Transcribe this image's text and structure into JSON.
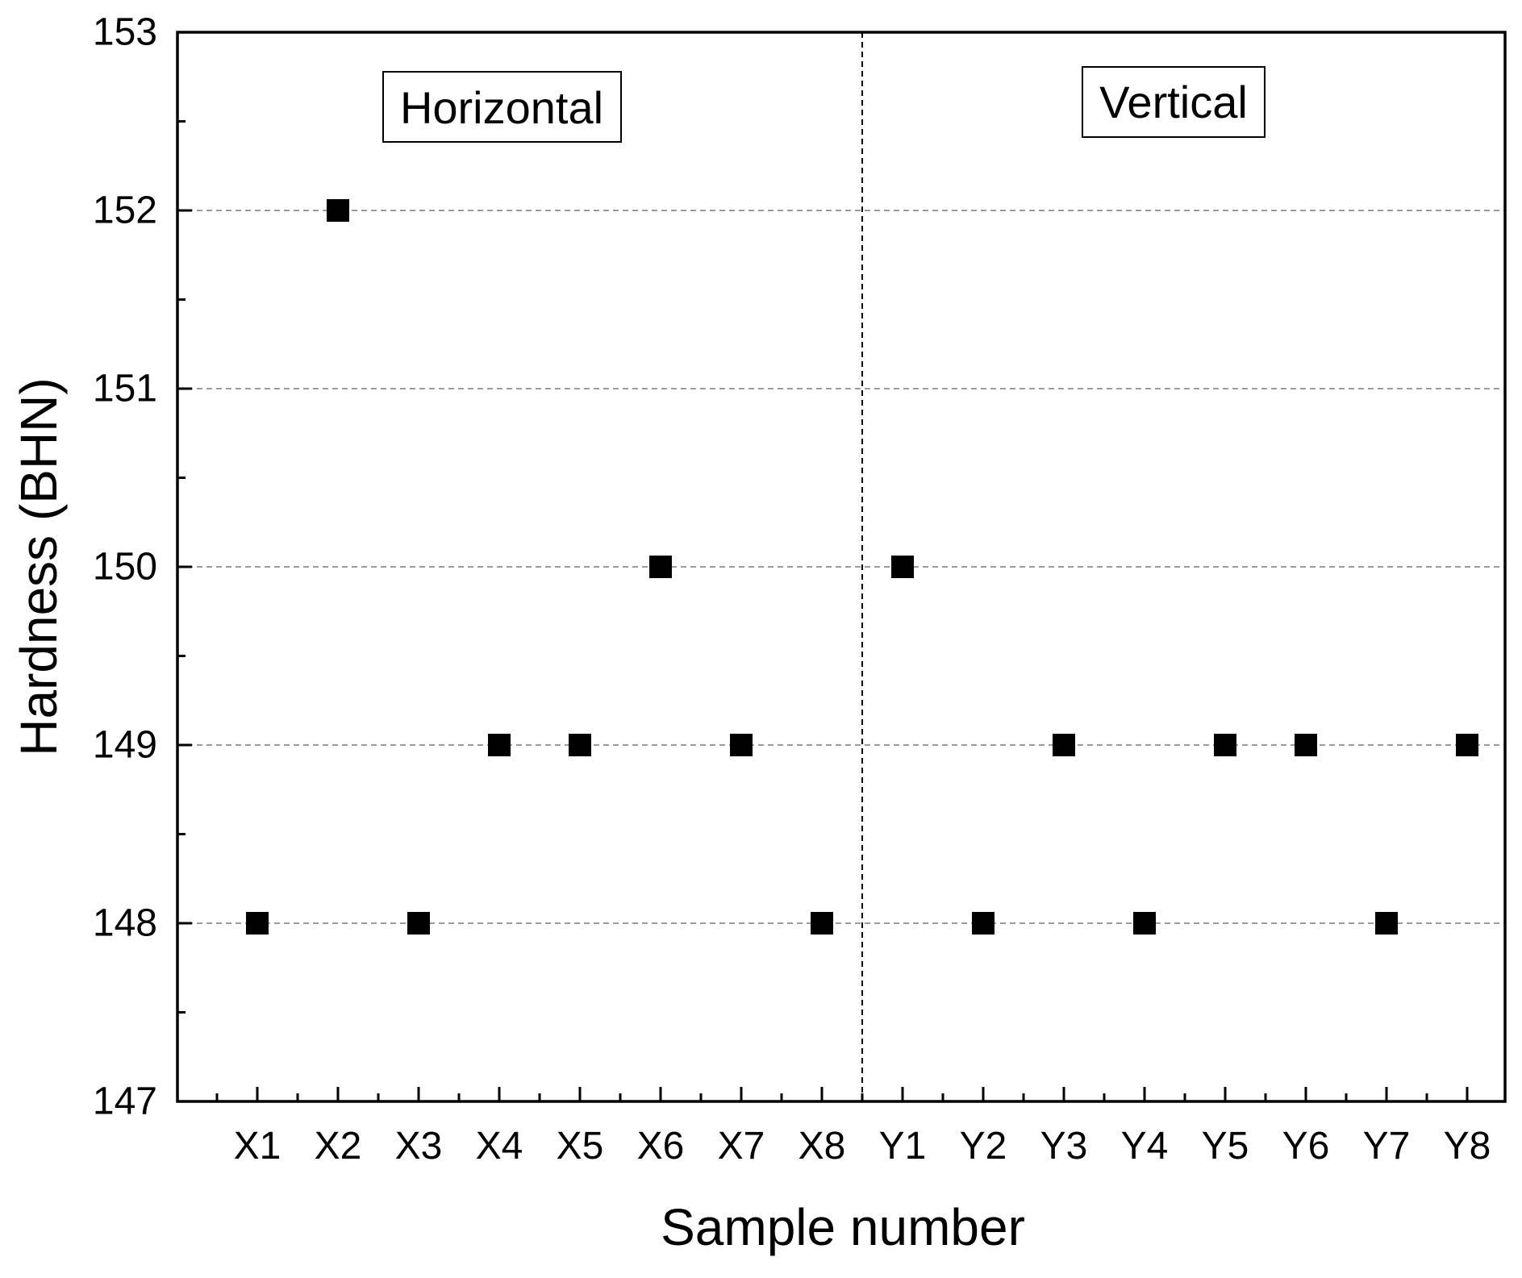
{
  "chart_data": {
    "type": "scatter",
    "title": "",
    "xlabel": "Sample number",
    "ylabel": "Hardness (BHN)",
    "categories": [
      "X1",
      "X2",
      "X3",
      "X4",
      "X5",
      "X6",
      "X7",
      "X8",
      "Y1",
      "Y2",
      "Y3",
      "Y4",
      "Y5",
      "Y6",
      "Y7",
      "Y8"
    ],
    "series": [
      {
        "values": [
          148,
          152,
          148,
          149,
          149,
          150,
          149,
          148,
          150,
          148,
          149,
          148,
          149,
          149,
          148,
          149
        ]
      }
    ],
    "ylim": [
      147,
      153
    ],
    "yticks": [
      147,
      148,
      149,
      150,
      151,
      152,
      153
    ],
    "grid": true,
    "marker": "square",
    "marker_color": "#000000",
    "divider_after_category": "X8",
    "annotations": [
      {
        "text": "Horizontal",
        "group": "X"
      },
      {
        "text": "Vertical",
        "group": "Y"
      }
    ]
  }
}
